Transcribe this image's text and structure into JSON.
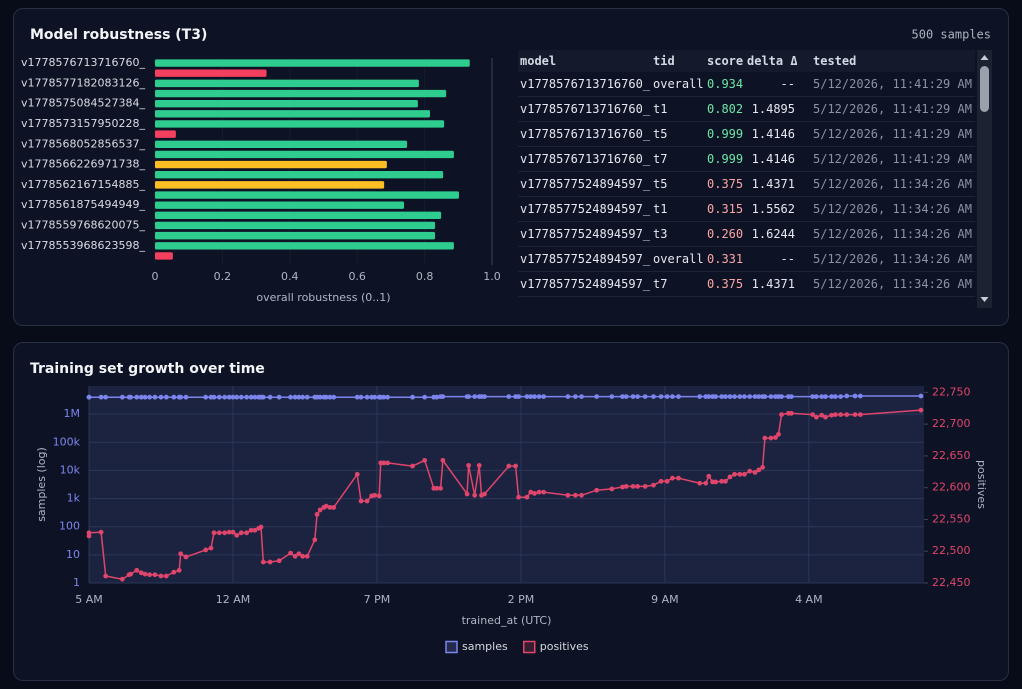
{
  "chart_data": [
    {
      "type": "barh",
      "title": "Model robustness (T3)",
      "subtitle": "500 samples",
      "categories": [
        "v1778576713716760_",
        null,
        "v1778577182083126_",
        null,
        "v1778575084527384_",
        null,
        "v1778573157950228_",
        null,
        "v1778568052856537_",
        null,
        "v1778566226971738_",
        null,
        "v1778562167154885_",
        null,
        "v1778561875494949_",
        null,
        "v1778559768620075_",
        null,
        "v1778553968623598_",
        null
      ],
      "values": [
        0.934,
        0.331,
        0.783,
        0.864,
        0.78,
        0.816,
        0.858,
        0.062,
        0.748,
        0.887,
        0.688,
        0.855,
        0.68,
        0.902,
        0.739,
        0.849,
        0.831,
        0.831,
        0.887,
        0.053
      ],
      "colors": [
        "#2ecc8f",
        "#f43f5e",
        "#2ecc8f",
        "#2ecc8f",
        "#2ecc8f",
        "#2ecc8f",
        "#2ecc8f",
        "#f43f5e",
        "#2ecc8f",
        "#2ecc8f",
        "#fbbf24",
        "#2ecc8f",
        "#fbbf24",
        "#2ecc8f",
        "#2ecc8f",
        "#2ecc8f",
        "#2ecc8f",
        "#2ecc8f",
        "#2ecc8f",
        "#f43f5e"
      ],
      "xlabel": "overall robustness (0..1)",
      "xlim": [
        0,
        1
      ],
      "xticks": [
        0,
        0.2,
        0.4,
        0.6,
        0.8,
        {
          "value": 1,
          "label": "1.0"
        }
      ]
    },
    {
      "type": "line",
      "title": "Training set growth over time",
      "xlabel": "trained_at (UTC)",
      "ylabel": "samples (log)",
      "y2label": "positives",
      "x": [
        0,
        0,
        1.6,
        2.2,
        4.4,
        5.3,
        5.5,
        6.3,
        6.9,
        7.4,
        8.0,
        8.7,
        9.5,
        10.2,
        11.2,
        11.9,
        12.1,
        12.8,
        15.4,
        16.1,
        16.5,
        17.2,
        17.9,
        18.5,
        19.0,
        19.5,
        20.1,
        20.8,
        21.4,
        21.9,
        22.4,
        22.7,
        23.0,
        23.9,
        25.1,
        26.6,
        27.2,
        27.7,
        28.2,
        28.8,
        29.8,
        30.1,
        30.5,
        31.0,
        31.3,
        31.8,
        32.3,
        35.4,
        35.9,
        36.7,
        37.3,
        37.7,
        38.3,
        38.5,
        38.9,
        39.4,
        42.7,
        44.3,
        45.5,
        45.9,
        46.4,
        46.7,
        49.9,
        50.1,
        50.9,
        51.5,
        51.8,
        52.2,
        55.4,
        56.3,
        56.7,
        57.8,
        58.3,
        58.8,
        59.4,
        60.0,
        63.2,
        64.2,
        65.0,
        67.0,
        69.0,
        70.4,
        70.9,
        71.8,
        72.4,
        73.4,
        74.5,
        75.5,
        76.3,
        77.0,
        77.8,
        80.6,
        81.4,
        81.8,
        82.3,
        82.7,
        83.5,
        84.0,
        84.6,
        85.2,
        85.9,
        86.5,
        87.2,
        87.9,
        88.4,
        88.9,
        89.2,
        90.0,
        90.6,
        91.0,
        91.4,
        92.3,
        92.7,
        95.5,
        96.0,
        96.7,
        97.2,
        98.0,
        98.5,
        99.2,
        100.0,
        101.1,
        101.8,
        109.8
      ],
      "xlim": [
        0,
        110.2
      ],
      "xticks": [
        {
          "value": 0,
          "label": "5 AM"
        },
        {
          "value": 19,
          "label": "12 AM"
        },
        {
          "value": 38,
          "label": "7 PM"
        },
        {
          "value": 57,
          "label": "2 PM"
        },
        {
          "value": 76,
          "label": "9 AM"
        },
        {
          "value": 95,
          "label": "4 AM"
        }
      ],
      "ylog": true,
      "ylim": [
        1,
        10000000
      ],
      "yticks": [
        1,
        10,
        100,
        {
          "value": 1000,
          "label": "1k"
        },
        {
          "value": 10000,
          "label": "10k"
        },
        {
          "value": 100000,
          "label": "100k"
        },
        {
          "value": 1000000,
          "label": "1M"
        }
      ],
      "y2lim": [
        22450,
        22760
      ],
      "y2ticks": [
        {
          "value": 22450,
          "label": "22,450"
        },
        {
          "value": 22500,
          "label": "22,500"
        },
        {
          "value": 22550,
          "label": "22,550"
        },
        {
          "value": 22600,
          "label": "22,600"
        },
        {
          "value": 22650,
          "label": "22,650"
        },
        {
          "value": 22700,
          "label": "22,700"
        },
        {
          "value": 22750,
          "label": "22,750"
        }
      ],
      "grid": true,
      "legend": "bottom",
      "series": [
        {
          "name": "samples",
          "color": "#7c85ee",
          "values": [
            4000000,
            4000000,
            4000000,
            4000000,
            4000000,
            4000000,
            4000000,
            4000000,
            4000000,
            4000000,
            4000000,
            4000000,
            4000000,
            4000000,
            4000000,
            4000000,
            4000000,
            4000000,
            4000000,
            4000000,
            4000000,
            4000000,
            4000000,
            4000000,
            4000000,
            4000000,
            4000000,
            4000000,
            4000000,
            4000000,
            4000000,
            4000000,
            4000000,
            4000000,
            4000000,
            4000000,
            4000000,
            4000000,
            4000000,
            4000000,
            4000000,
            4000000,
            4000000,
            4000000,
            4000000,
            4000000,
            4000000,
            4000000,
            4000000,
            4000000,
            4000000,
            4000000,
            4000000,
            4000000,
            4000000,
            4000000,
            4000000,
            4000000,
            4000000,
            4000000,
            4200000,
            4200000,
            4200000,
            4200000,
            4200000,
            4200000,
            4200000,
            4200000,
            4200000,
            4200000,
            4200000,
            4200000,
            4200000,
            4200000,
            4200000,
            4200000,
            4200000,
            4200000,
            4200000,
            4200000,
            4200000,
            4200000,
            4200000,
            4200000,
            4200000,
            4200000,
            4200000,
            4200000,
            4200000,
            4200000,
            4200000,
            4200000,
            4200000,
            4200000,
            4200000,
            4200000,
            4200000,
            4200000,
            4200000,
            4200000,
            4200000,
            4200000,
            4200000,
            4200000,
            4200000,
            4200000,
            4200000,
            4200000,
            4200000,
            4200000,
            4200000,
            4200000,
            4200000,
            4200000,
            4200000,
            4200000,
            4200000,
            4200000,
            4200000,
            4200000,
            4400000,
            4400000,
            4400000,
            4400000
          ]
        },
        {
          "name": "positives",
          "color": "#e0456b",
          "axis": "y2",
          "values": [
            22524,
            22529,
            22530,
            22461,
            22456,
            22463,
            22464,
            22470,
            22466,
            22464,
            22463,
            22463,
            22461,
            22461,
            22467,
            22470,
            22496,
            22491,
            22502,
            22505,
            22529,
            22529,
            22529,
            22530,
            22530,
            22525,
            22529,
            22529,
            22533,
            22533,
            22536,
            22538,
            22483,
            22483,
            22485,
            22497,
            22492,
            22496,
            22492,
            22492,
            22518,
            22558,
            22565,
            22569,
            22571,
            22569,
            22569,
            22621,
            22579,
            22579,
            22587,
            22588,
            22587,
            22639,
            22639,
            22639,
            22634,
            22643,
            22599,
            22599,
            22599,
            22643,
            22590,
            22635,
            22588,
            22635,
            22588,
            22590,
            22634,
            22634,
            22585,
            22585,
            22593,
            22591,
            22593,
            22593,
            22588,
            22588,
            22588,
            22596,
            22598,
            22601,
            22602,
            22602,
            22602,
            22602,
            22604,
            22610,
            22610,
            22615,
            22615,
            22607,
            22607,
            22618,
            22609,
            22609,
            22610,
            22610,
            22617,
            22621,
            22621,
            22621,
            22626,
            22624,
            22628,
            22632,
            22678,
            22678,
            22679,
            22684,
            22715,
            22717,
            22717,
            22715,
            22711,
            22714,
            22711,
            22714,
            22715,
            22715,
            22715,
            22715,
            22715,
            22722
          ]
        }
      ]
    }
  ],
  "table": {
    "columns": [
      "model",
      "tid",
      "score",
      "delta Δ",
      "tested"
    ],
    "rows": [
      [
        "v1778576713716760_",
        "overall",
        "0.934",
        "--",
        "5/12/2026, 11:41:29 AM"
      ],
      [
        "v1778576713716760_",
        "t1",
        "0.802",
        "1.4895",
        "5/12/2026, 11:41:29 AM"
      ],
      [
        "v1778576713716760_",
        "t5",
        "0.999",
        "1.4146",
        "5/12/2026, 11:41:29 AM"
      ],
      [
        "v1778576713716760_",
        "t7",
        "0.999",
        "1.4146",
        "5/12/2026, 11:41:29 AM"
      ],
      [
        "v1778577524894597_",
        "t5",
        "0.375",
        "1.4371",
        "5/12/2026, 11:34:26 AM"
      ],
      [
        "v1778577524894597_",
        "t1",
        "0.315",
        "1.5562",
        "5/12/2026, 11:34:26 AM"
      ],
      [
        "v1778577524894597_",
        "t3",
        "0.260",
        "1.6244",
        "5/12/2026, 11:34:26 AM"
      ],
      [
        "v1778577524894597_",
        "overall",
        "0.331",
        "--",
        "5/12/2026, 11:34:26 AM"
      ],
      [
        "v1778577524894597_",
        "t7",
        "0.375",
        "1.4371",
        "5/12/2026, 11:34:26 AM"
      ]
    ],
    "score_colors": [
      "#6ee7a7",
      "#6ee7a7",
      "#6ee7a7",
      "#6ee7a7",
      "#fca5a5",
      "#fca5a5",
      "#fca5a5",
      "#fca5a5",
      "#fca5a5"
    ]
  }
}
